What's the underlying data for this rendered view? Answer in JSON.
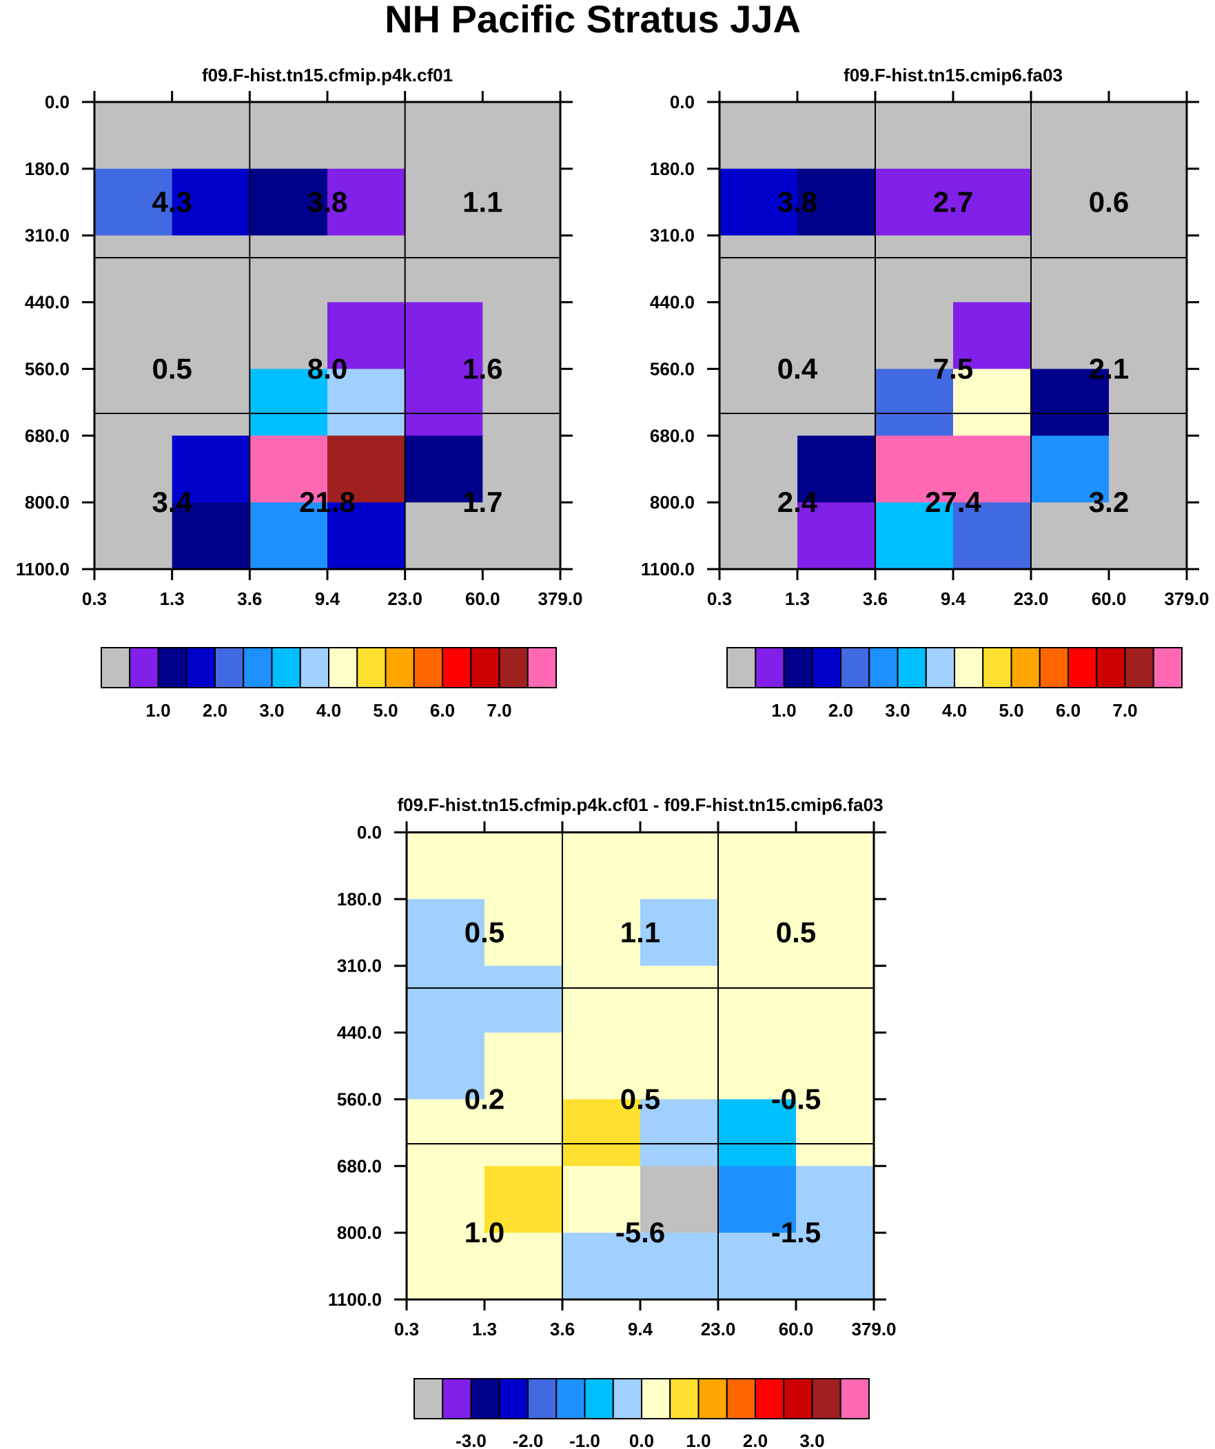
{
  "page": {
    "title": "NH Pacific Stratus JJA"
  },
  "axes": {
    "x_ticks": [
      "0.3",
      "1.3",
      "3.6",
      "9.4",
      "23.0",
      "60.0",
      "379.0"
    ],
    "y_ticks": [
      "0.0",
      "180.0",
      "310.0",
      "440.0",
      "560.0",
      "680.0",
      "800.0",
      "1100.0"
    ]
  },
  "palette": [
    "#c0c0c0",
    "#8020e8",
    "#00008b",
    "#0000cd",
    "#4169e1",
    "#1e90ff",
    "#00bfff",
    "#a0d0ff",
    "#ffffc8",
    "#ffe030",
    "#ffa500",
    "#ff6600",
    "#ff0000",
    "#cd0000",
    "#a02020",
    "#ff69b4"
  ],
  "chart_data": [
    {
      "type": "heatmap",
      "title": "f09.F-hist.tn15.cfmip.p4k.cf01",
      "grid": true,
      "fine_cells": [
        [
          0,
          0,
          0,
          0,
          0,
          0
        ],
        [
          4,
          3,
          2,
          1,
          0,
          0
        ],
        [
          0,
          0,
          0,
          0,
          0,
          0
        ],
        [
          0,
          0,
          0,
          1,
          1,
          0
        ],
        [
          0,
          0,
          6,
          7,
          1,
          0
        ],
        [
          0,
          3,
          15,
          14,
          2,
          0
        ],
        [
          0,
          2,
          5,
          3,
          0,
          0
        ]
      ],
      "group_values": [
        [
          "4.3",
          "3.8",
          "1.1"
        ],
        [
          "0.5",
          "8.0",
          "1.6"
        ],
        [
          "3.4",
          "21.8",
          "1.7"
        ]
      ],
      "colorbar_labels": [
        "1.0",
        "2.0",
        "3.0",
        "4.0",
        "5.0",
        "6.0",
        "7.0"
      ]
    },
    {
      "type": "heatmap",
      "title": "f09.F-hist.tn15.cmip6.fa03",
      "grid": true,
      "fine_cells": [
        [
          0,
          0,
          0,
          0,
          0,
          0
        ],
        [
          3,
          2,
          1,
          1,
          0,
          0
        ],
        [
          0,
          0,
          0,
          0,
          0,
          0
        ],
        [
          0,
          0,
          0,
          1,
          0,
          0
        ],
        [
          0,
          0,
          4,
          8,
          2,
          0
        ],
        [
          0,
          2,
          15,
          15,
          5,
          0
        ],
        [
          0,
          1,
          6,
          4,
          0,
          0
        ]
      ],
      "group_values": [
        [
          "3.8",
          "2.7",
          "0.6"
        ],
        [
          "0.4",
          "7.5",
          "2.1"
        ],
        [
          "2.4",
          "27.4",
          "3.2"
        ]
      ],
      "colorbar_labels": [
        "1.0",
        "2.0",
        "3.0",
        "4.0",
        "5.0",
        "6.0",
        "7.0"
      ]
    },
    {
      "type": "heatmap",
      "title": "f09.F-hist.tn15.cfmip.p4k.cf01 - f09.F-hist.tn15.cmip6.fa03",
      "grid": true,
      "fine_cells": [
        [
          8,
          8,
          8,
          8,
          8,
          8
        ],
        [
          7,
          8,
          8,
          7,
          8,
          8
        ],
        [
          7,
          7,
          8,
          8,
          8,
          8
        ],
        [
          7,
          8,
          8,
          8,
          8,
          8
        ],
        [
          8,
          8,
          9,
          7,
          6,
          8
        ],
        [
          8,
          9,
          8,
          0,
          5,
          7
        ],
        [
          8,
          8,
          7,
          7,
          7,
          7
        ]
      ],
      "group_values": [
        [
          "0.5",
          "1.1",
          "0.5"
        ],
        [
          "0.2",
          "0.5",
          "-0.5"
        ],
        [
          "1.0",
          "-5.6",
          "-1.5"
        ]
      ],
      "colorbar_labels": [
        "-3.0",
        "-2.0",
        "-1.0",
        "0.0",
        "1.0",
        "2.0",
        "3.0"
      ]
    }
  ]
}
